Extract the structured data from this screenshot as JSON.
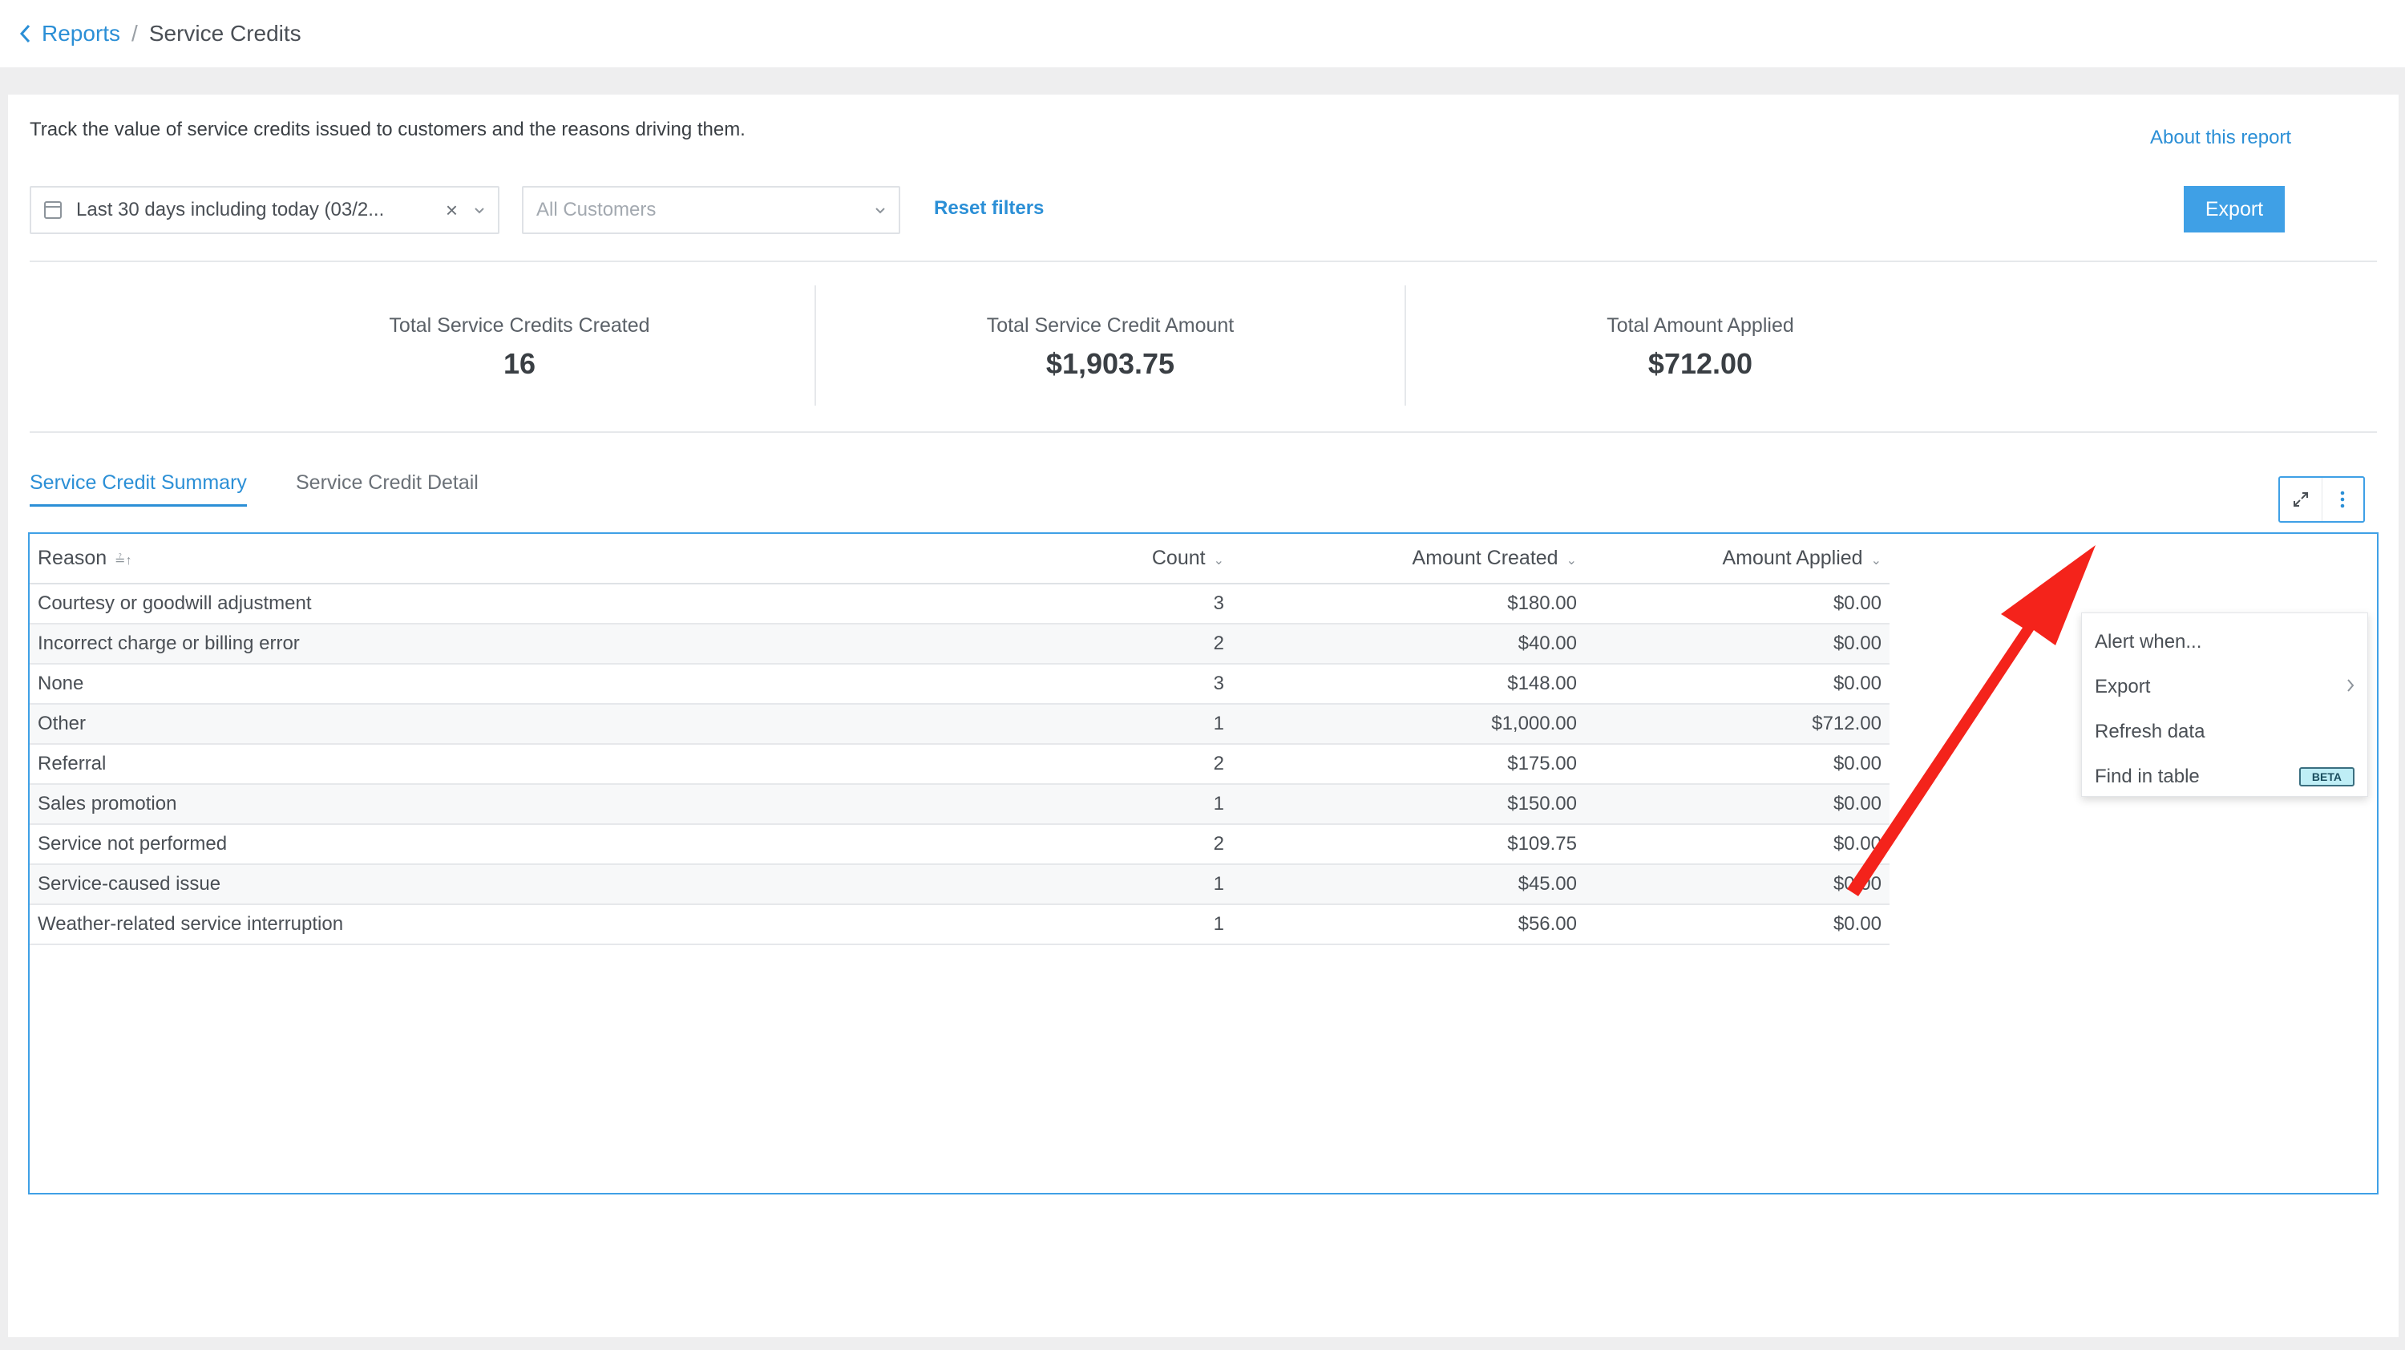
{
  "breadcrumb": {
    "parent": "Reports",
    "separator": "/",
    "current": "Service Credits"
  },
  "report": {
    "description": "Track the value of service credits issued to customers and the reasons driving them.",
    "about_link": "About this report",
    "export_label": "Export"
  },
  "filters": {
    "date_range": "Last 30 days including today (03/2...",
    "date_clear": "×",
    "customers_placeholder": "All Customers",
    "reset_label": "Reset filters"
  },
  "metrics": [
    {
      "label": "Total Service Credits Created",
      "value": "16"
    },
    {
      "label": "Total Service Credit Amount",
      "value": "$1,903.75"
    },
    {
      "label": "Total Amount Applied",
      "value": "$712.00"
    }
  ],
  "tabs": [
    {
      "label": "Service Credit Summary",
      "active": true
    },
    {
      "label": "Service Credit Detail",
      "active": false
    }
  ],
  "table": {
    "headers": [
      "Reason",
      "Count",
      "Amount Created",
      "Amount Applied"
    ],
    "rows": [
      [
        "Courtesy or goodwill adjustment",
        "3",
        "$180.00",
        "$0.00"
      ],
      [
        "Incorrect charge or billing error",
        "2",
        "$40.00",
        "$0.00"
      ],
      [
        "None",
        "3",
        "$148.00",
        "$0.00"
      ],
      [
        "Other",
        "1",
        "$1,000.00",
        "$712.00"
      ],
      [
        "Referral",
        "2",
        "$175.00",
        "$0.00"
      ],
      [
        "Sales promotion",
        "1",
        "$150.00",
        "$0.00"
      ],
      [
        "Service not performed",
        "2",
        "$109.75",
        "$0.00"
      ],
      [
        "Service-caused issue",
        "1",
        "$45.00",
        "$0.00"
      ],
      [
        "Weather-related service interruption",
        "1",
        "$56.00",
        "$0.00"
      ]
    ]
  },
  "menu": {
    "items": [
      {
        "label": "Alert when..."
      },
      {
        "label": "Export",
        "submenu": true
      },
      {
        "label": "Refresh data"
      },
      {
        "label": "Find in table",
        "badge": "BETA"
      }
    ]
  },
  "colors": {
    "accent": "#2b8fd6",
    "export_button": "#3fa0e6",
    "annotation_arrow": "#f4231b"
  },
  "icons": {
    "back": "chevron-left-icon",
    "calendar": "calendar-icon",
    "expand": "expand-icon",
    "more": "more-vertical-icon"
  }
}
